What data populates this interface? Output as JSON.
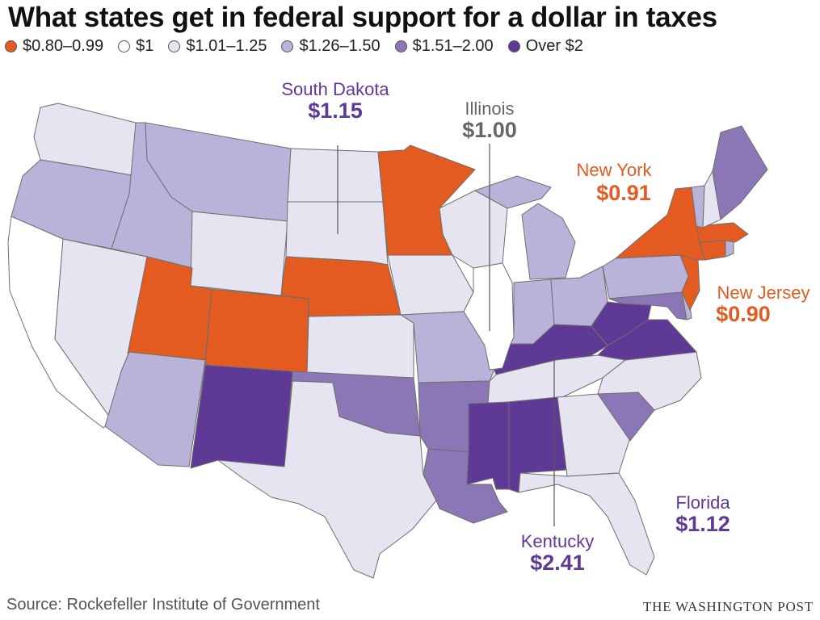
{
  "title": "What states get in federal support for a dollar in taxes",
  "legend": [
    {
      "label": "$0.80–0.99",
      "color": "#e35b20"
    },
    {
      "label": "$1",
      "color": "#ffffff"
    },
    {
      "label": "$1.01–1.25",
      "color": "#e6e4f0"
    },
    {
      "label": "$1.26–1.50",
      "color": "#b9b3d9"
    },
    {
      "label": "$1.51–2.00",
      "color": "#8c77b6"
    },
    {
      "label": "Over $2",
      "color": "#5f3996"
    }
  ],
  "callouts": {
    "south_dakota": {
      "name": "South Dakota",
      "value": "$1.15",
      "color": "#5f3996"
    },
    "illinois": {
      "name": "Illinois",
      "value": "$1.00",
      "color": "#666666"
    },
    "new_york": {
      "name": "New York",
      "value": "$0.91",
      "color": "#e35b20"
    },
    "new_jersey": {
      "name": "New Jersey",
      "value": "$0.90",
      "color": "#e35b20"
    },
    "florida": {
      "name": "Florida",
      "value": "$1.12",
      "color": "#5f3996"
    },
    "kentucky": {
      "name": "Kentucky",
      "value": "$2.41",
      "color": "#5f3996"
    }
  },
  "state_bins": {
    "WA": 2,
    "OR": 3,
    "CA": 1,
    "NV": 2,
    "ID": 3,
    "MT": 3,
    "WY": 2,
    "UT": 0,
    "CO": 0,
    "AZ": 3,
    "NM": 5,
    "ND": 2,
    "SD": 2,
    "NE": 0,
    "KS": 2,
    "OK": 4,
    "TX": 2,
    "MN": 0,
    "IA": 2,
    "MO": 3,
    "AR": 4,
    "LA": 4,
    "WI": 2,
    "IL": 1,
    "MI": 3,
    "IN": 3,
    "OH": 3,
    "KY": 5,
    "TN": 2,
    "MS": 5,
    "AL": 5,
    "GA": 2,
    "FL": 2,
    "SC": 4,
    "NC": 2,
    "VA": 5,
    "WV": 5,
    "PA": 3,
    "NY": 0,
    "NJ": 0,
    "DE": 3,
    "MD": 4,
    "CT": 0,
    "RI": 3,
    "MA": 0,
    "VT": 3,
    "NH": 2,
    "ME": 4
  },
  "source": "Source: Rockefeller Institute of Government",
  "credit": "THE WASHINGTON POST"
}
